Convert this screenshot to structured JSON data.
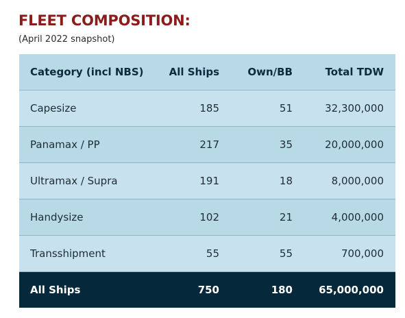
{
  "header": {
    "title": "FLEET COMPOSITION:",
    "subtitle": "(April 2022 snapshot)"
  },
  "table": {
    "columns": [
      "Category (incl NBS)",
      "All Ships",
      "Own/BB",
      "Total TDW"
    ],
    "rows": [
      [
        "Capesize",
        "185",
        "51",
        "32,300,000"
      ],
      [
        "Panamax / PP",
        "217",
        "35",
        "20,000,000"
      ],
      [
        "Ultramax / Supra",
        "191",
        "18",
        "8,000,000"
      ],
      [
        "Handysize",
        "102",
        "21",
        "4,000,000"
      ],
      [
        "Transshipment",
        "55",
        "55",
        "700,000"
      ]
    ],
    "total": [
      "All Ships",
      "750",
      "180",
      "65,000,000"
    ]
  },
  "colors": {
    "title": "#8b1c1c",
    "header_row": "#b8d9e6",
    "row_light": "#c7e2ee",
    "row_mid": "#b8d9e6",
    "total_row": "#05283b"
  }
}
